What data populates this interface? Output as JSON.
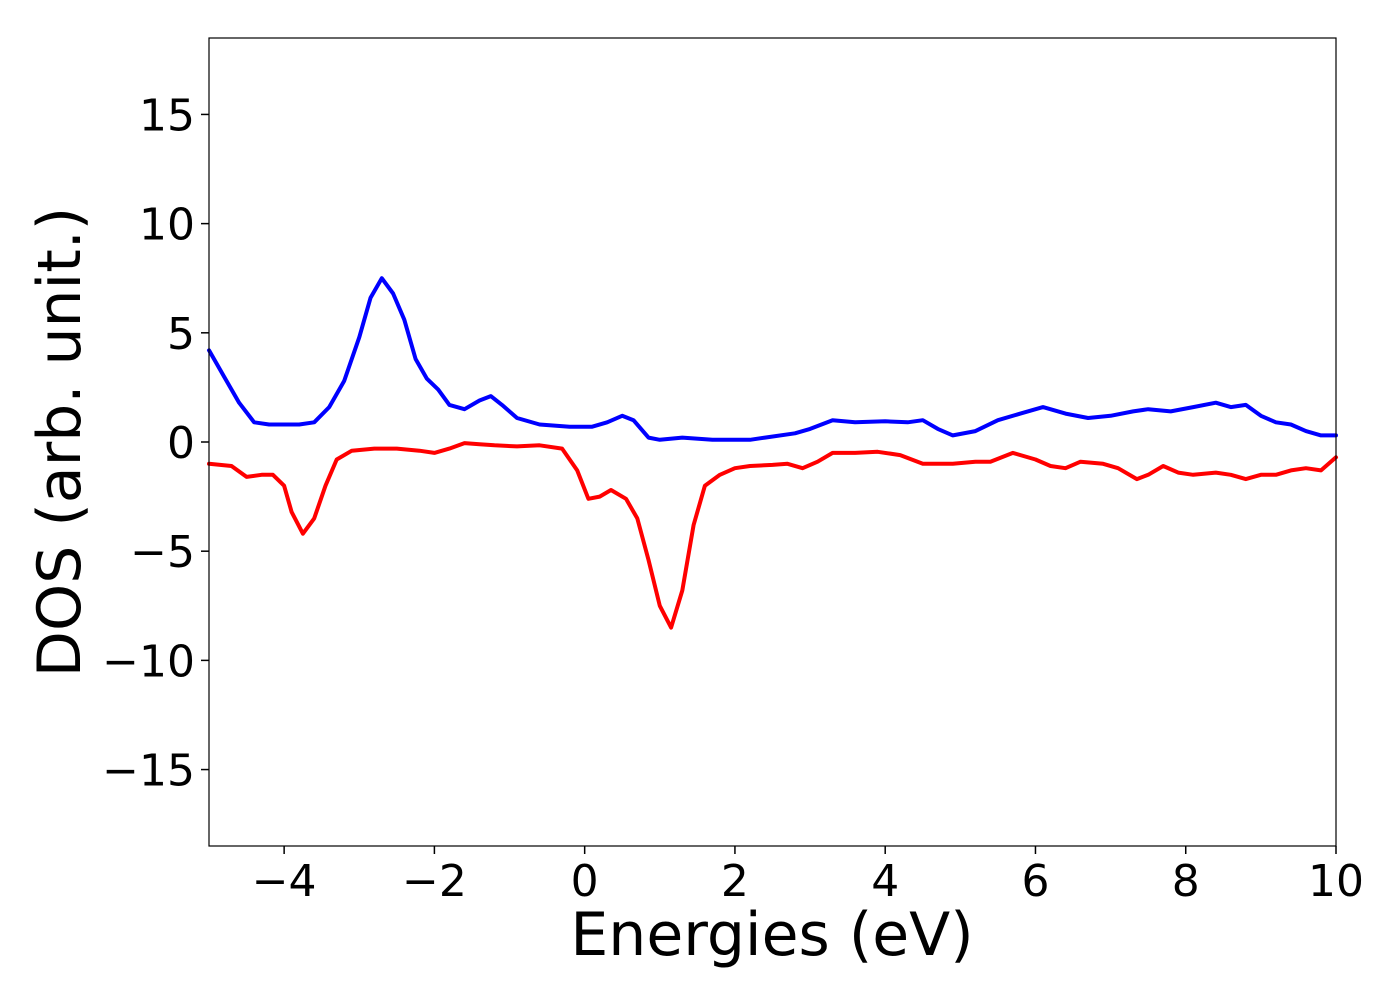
{
  "chart_data": {
    "type": "line",
    "title": "",
    "xlabel": "Energies (eV)",
    "ylabel": "DOS (arb. unit.)",
    "xlim": [
      -5,
      10
    ],
    "ylim": [
      -18.5,
      18.5
    ],
    "xticks": [
      -4,
      -2,
      0,
      2,
      4,
      6,
      8,
      10
    ],
    "xtick_labels": [
      "−4",
      "−2",
      "0",
      "2",
      "4",
      "6",
      "8",
      "10"
    ],
    "yticks": [
      -15,
      -10,
      -5,
      0,
      5,
      10,
      15
    ],
    "ytick_labels": [
      "−15",
      "−10",
      "−5",
      "0",
      "5",
      "10",
      "15"
    ],
    "grid": false,
    "legend": "none",
    "series": [
      {
        "color": "#0000ff",
        "points": [
          [
            -5.0,
            4.2
          ],
          [
            -4.8,
            3.0
          ],
          [
            -4.6,
            1.8
          ],
          [
            -4.4,
            0.9
          ],
          [
            -4.2,
            0.8
          ],
          [
            -4.0,
            0.8
          ],
          [
            -3.8,
            0.8
          ],
          [
            -3.6,
            0.9
          ],
          [
            -3.4,
            1.6
          ],
          [
            -3.2,
            2.8
          ],
          [
            -3.0,
            4.8
          ],
          [
            -2.85,
            6.6
          ],
          [
            -2.7,
            7.5
          ],
          [
            -2.55,
            6.8
          ],
          [
            -2.4,
            5.6
          ],
          [
            -2.25,
            3.8
          ],
          [
            -2.1,
            2.9
          ],
          [
            -1.95,
            2.4
          ],
          [
            -1.8,
            1.7
          ],
          [
            -1.6,
            1.5
          ],
          [
            -1.4,
            1.9
          ],
          [
            -1.25,
            2.1
          ],
          [
            -1.1,
            1.7
          ],
          [
            -0.9,
            1.1
          ],
          [
            -0.6,
            0.8
          ],
          [
            -0.2,
            0.7
          ],
          [
            0.1,
            0.7
          ],
          [
            0.3,
            0.9
          ],
          [
            0.5,
            1.2
          ],
          [
            0.65,
            1.0
          ],
          [
            0.85,
            0.2
          ],
          [
            1.0,
            0.1
          ],
          [
            1.3,
            0.2
          ],
          [
            1.7,
            0.1
          ],
          [
            2.2,
            0.1
          ],
          [
            2.4,
            0.2
          ],
          [
            2.8,
            0.4
          ],
          [
            3.0,
            0.6
          ],
          [
            3.3,
            1.0
          ],
          [
            3.6,
            0.9
          ],
          [
            4.0,
            0.95
          ],
          [
            4.3,
            0.9
          ],
          [
            4.5,
            1.0
          ],
          [
            4.7,
            0.6
          ],
          [
            4.9,
            0.3
          ],
          [
            5.2,
            0.5
          ],
          [
            5.5,
            1.0
          ],
          [
            5.8,
            1.3
          ],
          [
            6.1,
            1.6
          ],
          [
            6.4,
            1.3
          ],
          [
            6.7,
            1.1
          ],
          [
            7.0,
            1.2
          ],
          [
            7.3,
            1.4
          ],
          [
            7.5,
            1.5
          ],
          [
            7.8,
            1.4
          ],
          [
            8.1,
            1.6
          ],
          [
            8.4,
            1.8
          ],
          [
            8.6,
            1.6
          ],
          [
            8.8,
            1.7
          ],
          [
            9.0,
            1.2
          ],
          [
            9.2,
            0.9
          ],
          [
            9.4,
            0.8
          ],
          [
            9.6,
            0.5
          ],
          [
            9.8,
            0.3
          ],
          [
            10.0,
            0.3
          ]
        ]
      },
      {
        "color": "#ff0000",
        "points": [
          [
            -5.0,
            -1.0
          ],
          [
            -4.7,
            -1.1
          ],
          [
            -4.5,
            -1.6
          ],
          [
            -4.3,
            -1.5
          ],
          [
            -4.15,
            -1.5
          ],
          [
            -4.0,
            -2.0
          ],
          [
            -3.9,
            -3.2
          ],
          [
            -3.75,
            -4.2
          ],
          [
            -3.6,
            -3.5
          ],
          [
            -3.45,
            -2.0
          ],
          [
            -3.3,
            -0.8
          ],
          [
            -3.1,
            -0.4
          ],
          [
            -2.8,
            -0.3
          ],
          [
            -2.5,
            -0.3
          ],
          [
            -2.2,
            -0.4
          ],
          [
            -2.0,
            -0.5
          ],
          [
            -1.8,
            -0.3
          ],
          [
            -1.6,
            -0.05
          ],
          [
            -1.4,
            -0.1
          ],
          [
            -1.2,
            -0.15
          ],
          [
            -0.9,
            -0.2
          ],
          [
            -0.6,
            -0.15
          ],
          [
            -0.3,
            -0.3
          ],
          [
            -0.1,
            -1.3
          ],
          [
            0.05,
            -2.6
          ],
          [
            0.2,
            -2.5
          ],
          [
            0.35,
            -2.2
          ],
          [
            0.55,
            -2.6
          ],
          [
            0.7,
            -3.5
          ],
          [
            0.85,
            -5.4
          ],
          [
            1.0,
            -7.5
          ],
          [
            1.15,
            -8.5
          ],
          [
            1.3,
            -6.8
          ],
          [
            1.45,
            -3.8
          ],
          [
            1.6,
            -2.0
          ],
          [
            1.8,
            -1.5
          ],
          [
            2.0,
            -1.2
          ],
          [
            2.2,
            -1.1
          ],
          [
            2.5,
            -1.05
          ],
          [
            2.7,
            -1.0
          ],
          [
            2.9,
            -1.2
          ],
          [
            3.1,
            -0.9
          ],
          [
            3.3,
            -0.5
          ],
          [
            3.6,
            -0.5
          ],
          [
            3.9,
            -0.45
          ],
          [
            4.2,
            -0.6
          ],
          [
            4.5,
            -1.0
          ],
          [
            4.9,
            -1.0
          ],
          [
            5.2,
            -0.9
          ],
          [
            5.4,
            -0.9
          ],
          [
            5.7,
            -0.5
          ],
          [
            6.0,
            -0.8
          ],
          [
            6.2,
            -1.1
          ],
          [
            6.4,
            -1.2
          ],
          [
            6.6,
            -0.9
          ],
          [
            6.9,
            -1.0
          ],
          [
            7.1,
            -1.2
          ],
          [
            7.35,
            -1.7
          ],
          [
            7.5,
            -1.5
          ],
          [
            7.7,
            -1.1
          ],
          [
            7.9,
            -1.4
          ],
          [
            8.1,
            -1.5
          ],
          [
            8.4,
            -1.4
          ],
          [
            8.6,
            -1.5
          ],
          [
            8.8,
            -1.7
          ],
          [
            9.0,
            -1.5
          ],
          [
            9.2,
            -1.5
          ],
          [
            9.4,
            -1.3
          ],
          [
            9.6,
            -1.2
          ],
          [
            9.8,
            -1.3
          ],
          [
            10.0,
            -0.7
          ]
        ]
      }
    ]
  }
}
